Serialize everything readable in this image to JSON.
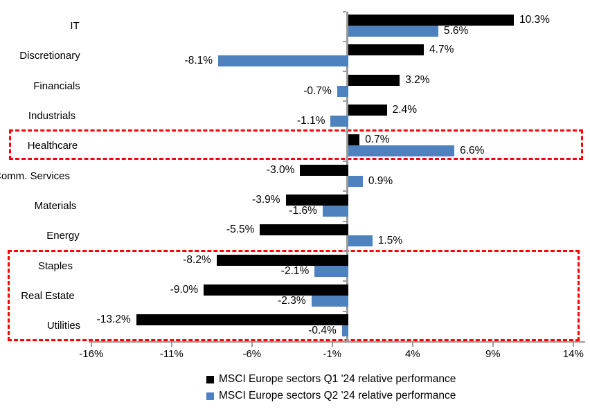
{
  "chart_data": {
    "type": "bar",
    "orientation": "horizontal",
    "title": "",
    "categories": [
      "IT",
      "Discretionary",
      "Financials",
      "Industrials",
      "Healthcare",
      "Comm. Services",
      "Materials",
      "Energy",
      "Staples",
      "Real Estate",
      "Utilities"
    ],
    "series": [
      {
        "name": "MSCI Europe sectors Q1 '24 relative performance",
        "color": "#000000",
        "values": [
          10.3,
          4.7,
          3.2,
          2.4,
          0.7,
          -3.0,
          -3.9,
          -5.5,
          -8.2,
          -9.0,
          -13.2
        ],
        "labels": [
          "10.3%",
          "4.7%",
          "3.2%",
          "2.4%",
          "0.7%",
          "-3.0%",
          "-3.9%",
          "-5.5%",
          "-8.2%",
          "-9.0%",
          "-13.2%"
        ]
      },
      {
        "name": "MSCI Europe sectors Q2 '24 relative performance",
        "color": "#4E82BE",
        "values": [
          5.6,
          -8.1,
          -0.7,
          -1.1,
          6.6,
          0.9,
          -1.6,
          1.5,
          -2.1,
          -2.3,
          -0.4
        ],
        "labels": [
          "5.6%",
          "-8.1%",
          "-0.7%",
          "-1.1%",
          "6.6%",
          "0.9%",
          "-1.6%",
          "1.5%",
          "-2.1%",
          "-2.3%",
          "-0.4%"
        ]
      }
    ],
    "x_axis": {
      "tick_labels": [
        "-16%",
        "-11%",
        "-6%",
        "-1%",
        "4%",
        "9%",
        "14%"
      ],
      "tick_values": [
        -16,
        -11,
        -6,
        -1,
        4,
        9,
        14
      ],
      "range": [
        -16.2,
        14.8
      ]
    },
    "grid": false,
    "legend_position": "bottom",
    "axis_color": "#9B9B9B",
    "highlight_color": "#FF0000",
    "annotations": [
      {
        "type": "dashed-box",
        "color": "#FF0000",
        "categories": [
          "Healthcare"
        ]
      },
      {
        "type": "dashed-box",
        "color": "#FF0000",
        "categories": [
          "Staples",
          "Real Estate",
          "Utilities"
        ]
      }
    ]
  }
}
